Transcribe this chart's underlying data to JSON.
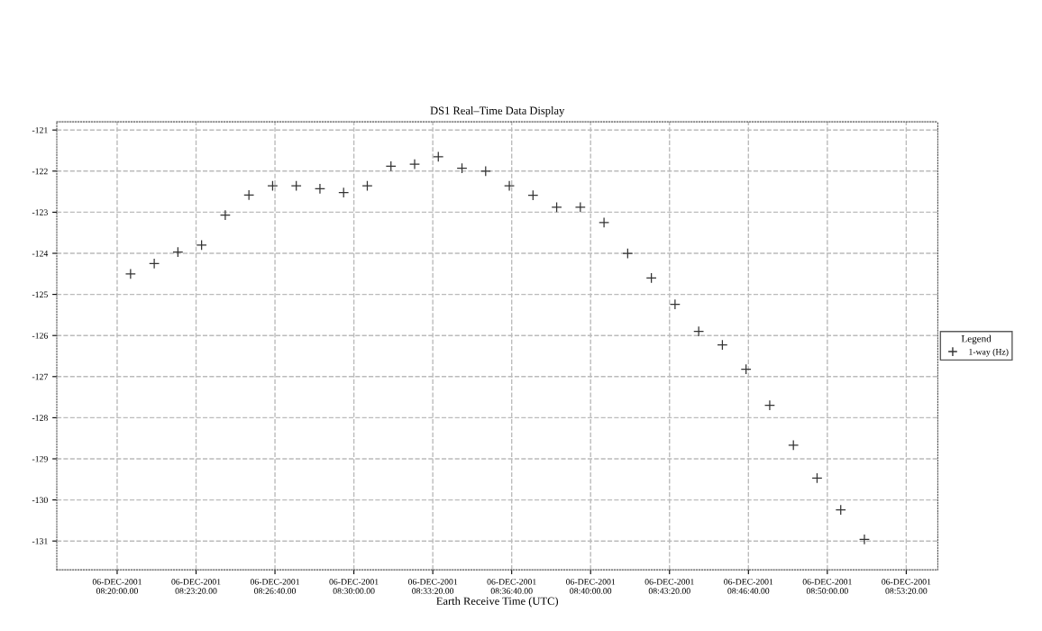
{
  "chart_data": {
    "type": "scatter",
    "title": "DS1 Real–Time Data Display",
    "xlabel": "Earth Receive Time (UTC)",
    "legend_title": "Legend",
    "series": [
      {
        "name": "1-way (Hz)",
        "color": "#333333",
        "x": [
          "2001-12-06T08:20:34",
          "2001-12-06T08:21:34",
          "2001-12-06T08:22:34",
          "2001-12-06T08:23:34",
          "2001-12-06T08:24:34",
          "2001-12-06T08:25:34",
          "2001-12-06T08:26:34",
          "2001-12-06T08:27:34",
          "2001-12-06T08:28:34",
          "2001-12-06T08:29:34",
          "2001-12-06T08:30:34",
          "2001-12-06T08:31:34",
          "2001-12-06T08:32:34",
          "2001-12-06T08:33:34",
          "2001-12-06T08:34:34",
          "2001-12-06T08:35:34",
          "2001-12-06T08:36:34",
          "2001-12-06T08:37:34",
          "2001-12-06T08:38:34",
          "2001-12-06T08:39:34",
          "2001-12-06T08:40:34",
          "2001-12-06T08:41:34",
          "2001-12-06T08:42:34",
          "2001-12-06T08:43:34",
          "2001-12-06T08:44:34",
          "2001-12-06T08:45:34",
          "2001-12-06T08:46:34",
          "2001-12-06T08:47:34",
          "2001-12-06T08:48:34",
          "2001-12-06T08:49:34",
          "2001-12-06T08:50:34",
          "2001-12-06T08:51:34"
        ],
        "values": [
          -124.5,
          -124.25,
          -123.97,
          -123.8,
          -123.07,
          -122.58,
          -122.36,
          -122.36,
          -122.43,
          -122.52,
          -122.36,
          -121.88,
          -121.83,
          -121.65,
          -121.93,
          -122.0,
          -122.36,
          -122.59,
          -122.88,
          -122.88,
          -123.25,
          -124.0,
          -124.6,
          -125.24,
          -125.9,
          -126.23,
          -126.82,
          -127.7,
          -128.67,
          -129.47,
          -130.24,
          -130.96
        ]
      }
    ],
    "xlim": [
      "2001-12-06T08:17:27",
      "2001-12-06T08:54:40"
    ],
    "xticks": [
      {
        "value": "2001-12-06T08:20:00",
        "label": "06-DEC-2001\n08:20:00.00"
      },
      {
        "value": "2001-12-06T08:23:20",
        "label": "06-DEC-2001\n08:23:20.00"
      },
      {
        "value": "2001-12-06T08:26:40",
        "label": "06-DEC-2001\n08:26:40.00"
      },
      {
        "value": "2001-12-06T08:30:00",
        "label": "06-DEC-2001\n08:30:00.00"
      },
      {
        "value": "2001-12-06T08:33:20",
        "label": "06-DEC-2001\n08:33:20.00"
      },
      {
        "value": "2001-12-06T08:36:40",
        "label": "06-DEC-2001\n08:36:40.00"
      },
      {
        "value": "2001-12-06T08:40:00",
        "label": "06-DEC-2001\n08:40:00.00"
      },
      {
        "value": "2001-12-06T08:43:20",
        "label": "06-DEC-2001\n08:43:20.00"
      },
      {
        "value": "2001-12-06T08:46:40",
        "label": "06-DEC-2001\n08:46:40.00"
      },
      {
        "value": "2001-12-06T08:50:00",
        "label": "06-DEC-2001\n08:50:00.00"
      },
      {
        "value": "2001-12-06T08:53:20",
        "label": "06-DEC-2001\n08:53:20.00"
      }
    ],
    "ylim": [
      -131.7,
      -120.8
    ],
    "yticks": [
      -131,
      -130,
      -129,
      -128,
      -127,
      -126,
      -125,
      -124,
      -123,
      -122,
      -121
    ],
    "grid": true,
    "legend": "right",
    "marker": "cross"
  }
}
